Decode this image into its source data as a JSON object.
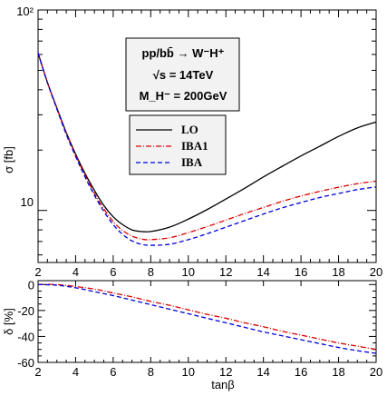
{
  "chart_data": [
    {
      "type": "line",
      "panel": "top",
      "xlabel": "",
      "ylabel": "σ [fb]",
      "yscale": "log",
      "xlim": [
        2,
        20
      ],
      "ylim": [
        5.5,
        100
      ],
      "x_ticks": [
        2,
        4,
        6,
        8,
        10,
        12,
        14,
        16,
        18,
        20
      ],
      "y_tick_labels": [
        "10",
        "10²"
      ],
      "grid": false,
      "legend_placement": "upper-center",
      "info_box": {
        "process": "pp/bb̄ → W⁻H⁺",
        "energy": "√s = 14TeV",
        "mass": "M_H⁻ = 200GeV"
      },
      "series": [
        {
          "name": "LO",
          "color": "#000000",
          "dash": "solid",
          "x": [
            2,
            2.5,
            3,
            3.5,
            4,
            4.5,
            5,
            5.5,
            6,
            6.5,
            7,
            7.5,
            8,
            9,
            10,
            11,
            12,
            13,
            14,
            15,
            16,
            17,
            18,
            19,
            20
          ],
          "y": [
            61,
            43.5,
            32.5,
            24.5,
            19.1,
            15.3,
            12.6,
            10.6,
            9.3,
            8.5,
            8.0,
            7.85,
            7.85,
            8.25,
            9.05,
            10.1,
            11.4,
            12.9,
            14.7,
            16.6,
            18.7,
            20.9,
            23.4,
            25.8,
            27.6
          ]
        },
        {
          "name": "IBA1",
          "color": "#dd0000",
          "dash": "dash-dot",
          "x": [
            2,
            2.5,
            3,
            3.5,
            4,
            4.5,
            5,
            5.5,
            6,
            6.5,
            7,
            7.5,
            8,
            9,
            10,
            11,
            12,
            13,
            14,
            15,
            16,
            17,
            18,
            19,
            20
          ],
          "y": [
            61,
            43.5,
            32.4,
            24.3,
            18.9,
            15.0,
            12.2,
            10.2,
            8.8,
            7.95,
            7.45,
            7.2,
            7.15,
            7.3,
            7.75,
            8.3,
            8.95,
            9.65,
            10.35,
            11.1,
            11.8,
            12.45,
            13.05,
            13.6,
            14.0
          ]
        },
        {
          "name": "IBA",
          "color": "#0000dd",
          "dash": "dashed",
          "x": [
            2,
            2.5,
            3,
            3.5,
            4,
            4.5,
            5,
            5.5,
            6,
            6.5,
            7,
            7.5,
            8,
            9,
            10,
            11,
            12,
            13,
            14,
            15,
            16,
            17,
            18,
            19,
            20
          ],
          "y": [
            61,
            43.3,
            32.1,
            24.0,
            18.6,
            14.7,
            11.9,
            9.9,
            8.5,
            7.6,
            7.05,
            6.78,
            6.7,
            6.78,
            7.15,
            7.65,
            8.25,
            8.9,
            9.6,
            10.3,
            10.95,
            11.6,
            12.15,
            12.7,
            13.1
          ]
        }
      ]
    },
    {
      "type": "line",
      "panel": "bottom",
      "xlabel": "tanβ",
      "ylabel": "δ [%]",
      "xlim": [
        2,
        20
      ],
      "ylim": [
        -60,
        3
      ],
      "x_ticks": [
        2,
        4,
        6,
        8,
        10,
        12,
        14,
        16,
        18,
        20
      ],
      "y_ticks": [
        0,
        -20,
        -40,
        -60
      ],
      "grid": false,
      "series": [
        {
          "name": "IBA1",
          "color": "#dd0000",
          "dash": "dash-dot",
          "x": [
            2,
            3,
            4,
            5,
            6,
            7,
            8,
            9,
            10,
            11,
            12,
            13,
            14,
            15,
            16,
            17,
            18,
            19,
            20
          ],
          "y": [
            0,
            0,
            -1.5,
            -3.5,
            -6.5,
            -9.5,
            -13,
            -16,
            -19.5,
            -23,
            -26,
            -29.5,
            -32.5,
            -36,
            -39,
            -42,
            -45,
            -47.5,
            -50
          ]
        },
        {
          "name": "IBA",
          "color": "#0000dd",
          "dash": "dashed",
          "x": [
            2,
            3,
            4,
            5,
            6,
            7,
            8,
            9,
            10,
            11,
            12,
            13,
            14,
            15,
            16,
            17,
            18,
            19,
            20
          ],
          "y": [
            0,
            -0.5,
            -2.5,
            -5.5,
            -8.5,
            -12,
            -15.5,
            -19,
            -22.5,
            -26,
            -29.5,
            -33,
            -36.5,
            -39.5,
            -42.5,
            -45.5,
            -48.5,
            -51,
            -53
          ]
        }
      ]
    }
  ]
}
